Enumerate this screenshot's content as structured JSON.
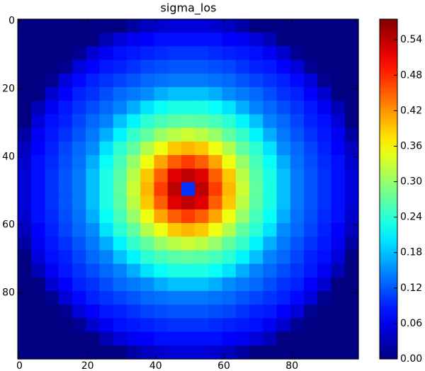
{
  "chart_data": {
    "type": "heatmap",
    "title": "sigma_los",
    "colormap": "jet",
    "xlim": [
      -0.5,
      99.5
    ],
    "ylim": [
      99.5,
      -0.5
    ],
    "xticks": [
      0,
      20,
      40,
      60,
      80
    ],
    "yticks": [
      0,
      20,
      40,
      60,
      80
    ],
    "colorbar": {
      "lim": [
        0,
        0.575
      ],
      "ticks": [
        {
          "value": 0,
          "label": "0.00"
        },
        0.06,
        0.12,
        0.18,
        0.24,
        {
          "value": 0.3,
          "label": "0.30"
        },
        0.36,
        0.42,
        0.48,
        0.54
      ]
    },
    "z": [
      [
        0,
        0,
        0,
        0,
        0,
        0,
        0,
        0,
        0.02,
        0.035,
        0.045,
        0.05,
        0.05,
        0.05,
        0.045,
        0.035,
        0.02,
        0,
        0,
        0,
        0,
        0,
        0,
        0,
        0
      ],
      [
        0,
        0,
        0,
        0,
        0,
        0,
        0.03,
        0.05,
        0.065,
        0.07,
        0.08,
        0.08,
        0.08,
        0.08,
        0.08,
        0.07,
        0.065,
        0.05,
        0.03,
        0,
        0,
        0,
        0,
        0,
        0
      ],
      [
        0,
        0,
        0,
        0,
        0.01,
        0.045,
        0.065,
        0.08,
        0.085,
        0.09,
        0.095,
        0.1,
        0.1,
        0.1,
        0.095,
        0.09,
        0.085,
        0.08,
        0.065,
        0.045,
        0.01,
        0,
        0,
        0,
        0
      ],
      [
        0,
        0,
        0,
        0.01,
        0.05,
        0.07,
        0.085,
        0.09,
        0.1,
        0.11,
        0.115,
        0.12,
        0.12,
        0.12,
        0.115,
        0.11,
        0.1,
        0.09,
        0.085,
        0.07,
        0.05,
        0.01,
        0,
        0,
        0
      ],
      [
        0,
        0,
        0.01,
        0.05,
        0.075,
        0.09,
        0.1,
        0.11,
        0.12,
        0.13,
        0.135,
        0.14,
        0.14,
        0.14,
        0.135,
        0.13,
        0.12,
        0.11,
        0.1,
        0.09,
        0.075,
        0.05,
        0.01,
        0,
        0
      ],
      [
        0,
        0,
        0.045,
        0.07,
        0.09,
        0.1,
        0.115,
        0.13,
        0.14,
        0.15,
        0.17,
        0.18,
        0.18,
        0.18,
        0.17,
        0.15,
        0.14,
        0.13,
        0.115,
        0.1,
        0.09,
        0.07,
        0.045,
        0,
        0
      ],
      [
        0,
        0.03,
        0.065,
        0.085,
        0.1,
        0.115,
        0.13,
        0.145,
        0.17,
        0.2,
        0.22,
        0.23,
        0.23,
        0.23,
        0.22,
        0.2,
        0.17,
        0.145,
        0.13,
        0.115,
        0.1,
        0.085,
        0.065,
        0.03,
        0
      ],
      [
        0,
        0.05,
        0.08,
        0.09,
        0.11,
        0.13,
        0.145,
        0.18,
        0.21,
        0.24,
        0.255,
        0.265,
        0.27,
        0.265,
        0.255,
        0.24,
        0.21,
        0.18,
        0.145,
        0.13,
        0.11,
        0.09,
        0.08,
        0.05,
        0
      ],
      [
        0.02,
        0.065,
        0.085,
        0.1,
        0.12,
        0.14,
        0.17,
        0.21,
        0.245,
        0.27,
        0.3,
        0.32,
        0.33,
        0.32,
        0.3,
        0.27,
        0.245,
        0.21,
        0.17,
        0.14,
        0.12,
        0.1,
        0.085,
        0.065,
        0.02
      ],
      [
        0.035,
        0.07,
        0.09,
        0.11,
        0.13,
        0.15,
        0.2,
        0.24,
        0.27,
        0.315,
        0.35,
        0.39,
        0.4,
        0.39,
        0.35,
        0.315,
        0.27,
        0.24,
        0.2,
        0.15,
        0.13,
        0.11,
        0.09,
        0.07,
        0.035
      ],
      [
        0.045,
        0.08,
        0.095,
        0.115,
        0.135,
        0.17,
        0.22,
        0.255,
        0.3,
        0.35,
        0.41,
        0.45,
        0.47,
        0.45,
        0.41,
        0.35,
        0.3,
        0.255,
        0.22,
        0.17,
        0.135,
        0.115,
        0.095,
        0.08,
        0.045
      ],
      [
        0.05,
        0.08,
        0.1,
        0.12,
        0.14,
        0.18,
        0.23,
        0.265,
        0.32,
        0.39,
        0.45,
        0.52,
        0.54,
        0.52,
        0.45,
        0.39,
        0.32,
        0.265,
        0.23,
        0.18,
        0.14,
        0.12,
        0.1,
        0.08,
        0.05
      ],
      [
        0.05,
        0.08,
        0.1,
        0.12,
        0.14,
        0.18,
        0.23,
        0.27,
        0.33,
        0.4,
        0.47,
        0.54,
        0.1,
        0.54,
        0.47,
        0.4,
        0.33,
        0.27,
        0.23,
        0.18,
        0.14,
        0.12,
        0.1,
        0.08,
        0.05
      ],
      [
        0.05,
        0.08,
        0.1,
        0.12,
        0.14,
        0.18,
        0.23,
        0.265,
        0.32,
        0.39,
        0.45,
        0.52,
        0.54,
        0.52,
        0.45,
        0.39,
        0.32,
        0.265,
        0.23,
        0.18,
        0.14,
        0.12,
        0.1,
        0.08,
        0.05
      ],
      [
        0.045,
        0.08,
        0.095,
        0.115,
        0.135,
        0.17,
        0.22,
        0.255,
        0.3,
        0.35,
        0.41,
        0.45,
        0.47,
        0.45,
        0.41,
        0.35,
        0.3,
        0.255,
        0.22,
        0.17,
        0.135,
        0.115,
        0.095,
        0.08,
        0.045
      ],
      [
        0.035,
        0.07,
        0.09,
        0.11,
        0.13,
        0.15,
        0.2,
        0.24,
        0.27,
        0.315,
        0.35,
        0.39,
        0.4,
        0.39,
        0.35,
        0.315,
        0.27,
        0.24,
        0.2,
        0.15,
        0.13,
        0.11,
        0.09,
        0.07,
        0.035
      ],
      [
        0.02,
        0.065,
        0.085,
        0.1,
        0.12,
        0.14,
        0.17,
        0.21,
        0.245,
        0.27,
        0.3,
        0.32,
        0.33,
        0.32,
        0.3,
        0.27,
        0.245,
        0.21,
        0.17,
        0.14,
        0.12,
        0.1,
        0.085,
        0.065,
        0.02
      ],
      [
        0,
        0.05,
        0.08,
        0.09,
        0.11,
        0.13,
        0.145,
        0.18,
        0.21,
        0.24,
        0.255,
        0.265,
        0.27,
        0.265,
        0.255,
        0.24,
        0.21,
        0.18,
        0.145,
        0.13,
        0.11,
        0.09,
        0.08,
        0.05,
        0
      ],
      [
        0,
        0.03,
        0.065,
        0.085,
        0.1,
        0.115,
        0.13,
        0.145,
        0.17,
        0.2,
        0.22,
        0.23,
        0.23,
        0.23,
        0.22,
        0.2,
        0.17,
        0.145,
        0.13,
        0.115,
        0.1,
        0.085,
        0.065,
        0.03,
        0
      ],
      [
        0,
        0,
        0.045,
        0.07,
        0.09,
        0.1,
        0.115,
        0.13,
        0.14,
        0.15,
        0.17,
        0.18,
        0.18,
        0.18,
        0.17,
        0.15,
        0.14,
        0.13,
        0.115,
        0.1,
        0.09,
        0.07,
        0.045,
        0,
        0
      ],
      [
        0,
        0,
        0.01,
        0.05,
        0.075,
        0.09,
        0.1,
        0.11,
        0.12,
        0.13,
        0.135,
        0.14,
        0.14,
        0.14,
        0.135,
        0.13,
        0.12,
        0.11,
        0.1,
        0.09,
        0.075,
        0.05,
        0.01,
        0,
        0
      ],
      [
        0,
        0,
        0,
        0.01,
        0.05,
        0.07,
        0.085,
        0.09,
        0.1,
        0.11,
        0.115,
        0.12,
        0.12,
        0.12,
        0.115,
        0.11,
        0.1,
        0.09,
        0.085,
        0.07,
        0.05,
        0.01,
        0,
        0,
        0
      ],
      [
        0,
        0,
        0,
        0,
        0.01,
        0.045,
        0.065,
        0.08,
        0.085,
        0.09,
        0.095,
        0.1,
        0.1,
        0.1,
        0.095,
        0.09,
        0.085,
        0.08,
        0.065,
        0.045,
        0.01,
        0,
        0,
        0,
        0
      ],
      [
        0,
        0,
        0,
        0,
        0,
        0,
        0.03,
        0.05,
        0.065,
        0.07,
        0.08,
        0.08,
        0.08,
        0.08,
        0.08,
        0.07,
        0.065,
        0.05,
        0.03,
        0,
        0,
        0,
        0,
        0,
        0
      ],
      [
        0,
        0,
        0,
        0,
        0,
        0,
        0,
        0,
        0.02,
        0.035,
        0.045,
        0.05,
        0.05,
        0.05,
        0.045,
        0.035,
        0.02,
        0,
        0,
        0,
        0,
        0,
        0,
        0,
        0
      ]
    ]
  }
}
